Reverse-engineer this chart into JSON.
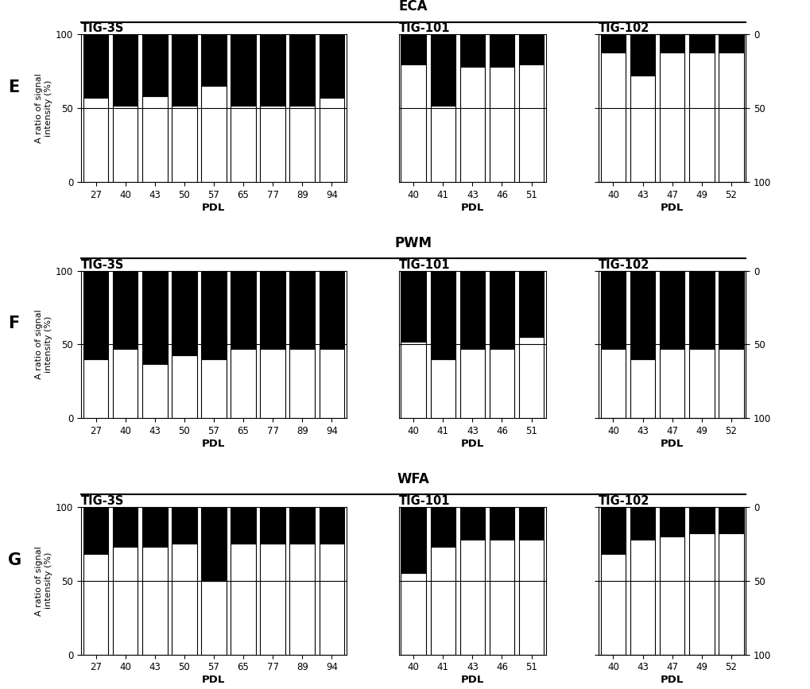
{
  "panels": [
    {
      "row_label": "E",
      "lectin": "ECA",
      "subpanels": [
        {
          "title": "TIG-3S",
          "pdl": [
            "27",
            "40",
            "43",
            "50",
            "57",
            "65",
            "77",
            "89",
            "94"
          ],
          "surface": [
            57,
            52,
            58,
            52,
            65,
            52,
            52,
            52,
            57
          ],
          "intracellular": [
            43,
            48,
            42,
            48,
            35,
            48,
            48,
            48,
            43
          ]
        },
        {
          "title": "TIG-101",
          "pdl": [
            "40",
            "41",
            "43",
            "46",
            "51"
          ],
          "surface": [
            80,
            52,
            78,
            78,
            80
          ],
          "intracellular": [
            20,
            48,
            22,
            22,
            20
          ]
        },
        {
          "title": "TIG-102",
          "pdl": [
            "40",
            "43",
            "47",
            "49",
            "52"
          ],
          "surface": [
            88,
            72,
            88,
            88,
            88
          ],
          "intracellular": [
            12,
            28,
            12,
            12,
            12
          ]
        }
      ]
    },
    {
      "row_label": "F",
      "lectin": "PWM",
      "subpanels": [
        {
          "title": "TIG-3S",
          "pdl": [
            "27",
            "40",
            "43",
            "50",
            "57",
            "65",
            "77",
            "89",
            "94"
          ],
          "surface": [
            40,
            47,
            37,
            43,
            40,
            47,
            47,
            47,
            47
          ],
          "intracellular": [
            60,
            53,
            63,
            57,
            60,
            53,
            53,
            53,
            53
          ]
        },
        {
          "title": "TIG-101",
          "pdl": [
            "40",
            "41",
            "43",
            "46",
            "51"
          ],
          "surface": [
            52,
            40,
            47,
            47,
            55
          ],
          "intracellular": [
            48,
            60,
            53,
            53,
            45
          ]
        },
        {
          "title": "TIG-102",
          "pdl": [
            "40",
            "43",
            "47",
            "49",
            "52"
          ],
          "surface": [
            47,
            40,
            47,
            47,
            47
          ],
          "intracellular": [
            53,
            60,
            53,
            53,
            53
          ]
        }
      ]
    },
    {
      "row_label": "G",
      "lectin": "WFA",
      "subpanels": [
        {
          "title": "TIG-3S",
          "pdl": [
            "27",
            "40",
            "43",
            "50",
            "57",
            "65",
            "77",
            "89",
            "94"
          ],
          "surface": [
            68,
            73,
            73,
            75,
            50,
            75,
            75,
            75,
            75
          ],
          "intracellular": [
            32,
            27,
            27,
            25,
            50,
            25,
            25,
            25,
            25
          ]
        },
        {
          "title": "TIG-101",
          "pdl": [
            "40",
            "41",
            "43",
            "46",
            "51"
          ],
          "surface": [
            55,
            73,
            78,
            78,
            78
          ],
          "intracellular": [
            45,
            27,
            22,
            22,
            22
          ]
        },
        {
          "title": "TIG-102",
          "pdl": [
            "40",
            "43",
            "47",
            "49",
            "52"
          ],
          "surface": [
            68,
            78,
            80,
            82,
            82
          ],
          "intracellular": [
            32,
            22,
            20,
            18,
            18
          ]
        }
      ]
    }
  ],
  "ylabel": "A ratio of signal\nintensity (%)",
  "xlabel": "PDL",
  "bar_color_intra": "#000000",
  "bar_color_surface": "#ffffff",
  "bar_edgecolor": "#000000",
  "fig_width": 10.2,
  "fig_height": 8.67
}
